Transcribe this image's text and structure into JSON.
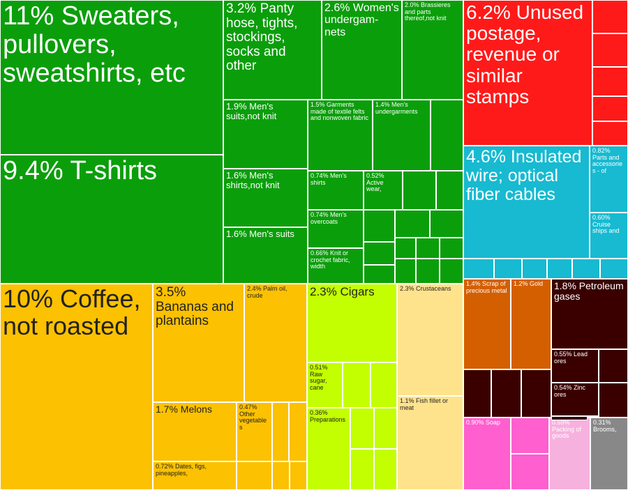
{
  "chart_data": {
    "type": "treemap",
    "unit": "%",
    "colors": {
      "textiles": "#0b9e0b",
      "postage": "#ff1a1a",
      "electrical": "#17bad1",
      "vegetable": "#fcc100",
      "foodstuffs": "#c3ff00",
      "animal": "#ffe38c",
      "metals": "#d45f00",
      "minerals": "#3a0000",
      "chemicals": "#ff5fcf",
      "misc": "#f7b1df",
      "other": "#888888"
    },
    "labels": {
      "sweaters": "11% Sweaters, pullovers, sweatshirts, etc",
      "tshirts": "9.4% T-shirts",
      "pantyhose": "3.2% Panty hose, tights, stockings, socks and other",
      "womens_under": "2.6% Women's undergam-nets",
      "brassieres": "2.0% Brassieres and parts thereof,not knit",
      "mens_suits_nk": "1.9% Men's suits,not knit",
      "garments_felt": "1.5% Garments made of textile felts and nonwoven fabric",
      "mens_under": "1.4% Men's undergarments",
      "mens_shirts_nk": "1.6% Men's shirts,not knit",
      "mens_shirts": "0.74% Men's shirts",
      "active_wear": "0.52% Active wear,",
      "mens_suits": "1.6% Men's suits",
      "mens_overcoats": "0.74% Men's overcoats",
      "knit_fabric": "0.66% Knit or crochet fabric, width",
      "postage": "6.2% Unused postage, revenue or similar stamps",
      "insulated_wire": "4.6% Insulated wire; optical fiber cables",
      "parts_acc": "0.82% Parts and accessories - of",
      "cruise_ships": "0.60% Cruise ships and",
      "coffee": "10% Coffee, not roasted",
      "bananas": "3.5% Bananas and plantains",
      "palm_oil": "2.4% Palm oil, crude",
      "melons": "1.7% Melons",
      "other_veg": "0.47% Other vegetables",
      "dates": "0.72% Dates, figs, pineapples,",
      "cigars": "2.3% Cigars",
      "raw_sugar": "0.51% Raw sugar, cane",
      "preparations": "0.36% Preparations",
      "crustaceans": "2.3% Crustaceans",
      "fish_fillet": "1.1% Fish fillet or meat",
      "soap_metal": "1.4% Scrap of precious metal",
      "gold": "1.2% Gold",
      "petroleum_gas": "1.8% Petroleum gases",
      "lead_ores": "0.55% Lead ores",
      "zinc_ores": "0.54% Zinc ores",
      "soap": "0.90% Soap",
      "packing": "0.59% Packing of goods",
      "brooms": "0.31% Brooms,"
    },
    "values": {
      "sweaters": 11,
      "tshirts": 9.4,
      "pantyhose": 3.2,
      "womens_under": 2.6,
      "brassieres": 2.0,
      "mens_suits_nk": 1.9,
      "garments_felt": 1.5,
      "mens_under": 1.4,
      "mens_shirts_nk": 1.6,
      "mens_shirts": 0.74,
      "active_wear": 0.52,
      "mens_suits": 1.6,
      "mens_overcoats": 0.74,
      "knit_fabric": 0.66,
      "postage": 6.2,
      "insulated_wire": 4.6,
      "parts_acc": 0.82,
      "cruise_ships": 0.6,
      "coffee": 10,
      "bananas": 3.5,
      "palm_oil": 2.4,
      "melons": 1.7,
      "other_veg": 0.47,
      "dates": 0.72,
      "cigars": 2.3,
      "raw_sugar": 0.51,
      "preparations": 0.36,
      "crustaceans": 2.3,
      "fish_fillet": 1.1,
      "soap_metal": 1.4,
      "gold": 1.2,
      "petroleum_gas": 1.8,
      "lead_ores": 0.55,
      "zinc_ores": 0.54,
      "soap": 0.9,
      "packing": 0.59,
      "brooms": 0.31
    }
  }
}
